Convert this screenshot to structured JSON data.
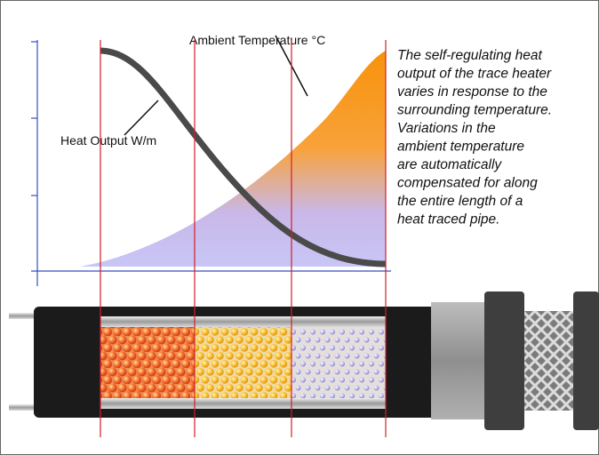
{
  "labels": {
    "ambient": "Ambient Temperature °C",
    "heat_output": "Heat Output W/m"
  },
  "description": [
    "The self-regulating heat",
    "output of the trace heater",
    "varies in response to the",
    "surrounding temperature.",
    "Variations in the",
    "ambient temperature",
    "are automatically",
    "compensated for along",
    "the entire length of a",
    "heat traced pipe."
  ]
}
